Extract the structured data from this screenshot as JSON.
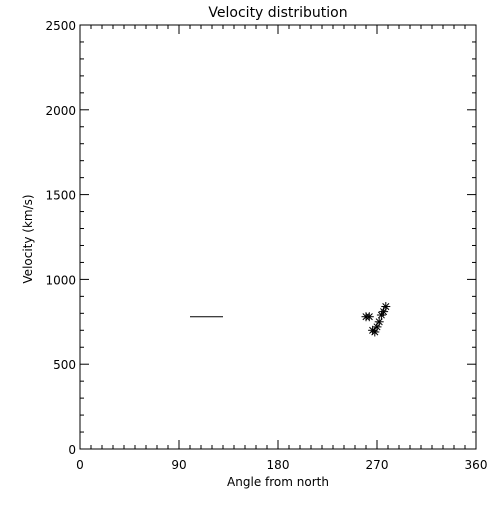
{
  "chart_data": {
    "type": "scatter",
    "title": "Velocity distribution",
    "xlabel": "Angle from north",
    "ylabel": "Velocity (km/s)",
    "xlim": [
      0,
      360
    ],
    "ylim": [
      0,
      2500
    ],
    "xticks": [
      0,
      90,
      180,
      270,
      360
    ],
    "yticks": [
      0,
      500,
      1000,
      1500,
      2000,
      2500
    ],
    "x_minor_step": 10,
    "y_minor_step": 100,
    "grid": false,
    "colors": {
      "foreground": "#000000",
      "background": "#ffffff"
    },
    "segment": {
      "x": [
        100,
        130
      ],
      "y": [
        780,
        780
      ]
    },
    "series": [
      {
        "marker": "asterisk",
        "points": [
          {
            "x": 260,
            "y": 780
          },
          {
            "x": 263,
            "y": 780
          },
          {
            "x": 266,
            "y": 700
          },
          {
            "x": 268,
            "y": 690
          },
          {
            "x": 270,
            "y": 720
          },
          {
            "x": 272,
            "y": 750
          },
          {
            "x": 274,
            "y": 790
          },
          {
            "x": 276,
            "y": 810
          },
          {
            "x": 278,
            "y": 840
          }
        ]
      }
    ]
  }
}
